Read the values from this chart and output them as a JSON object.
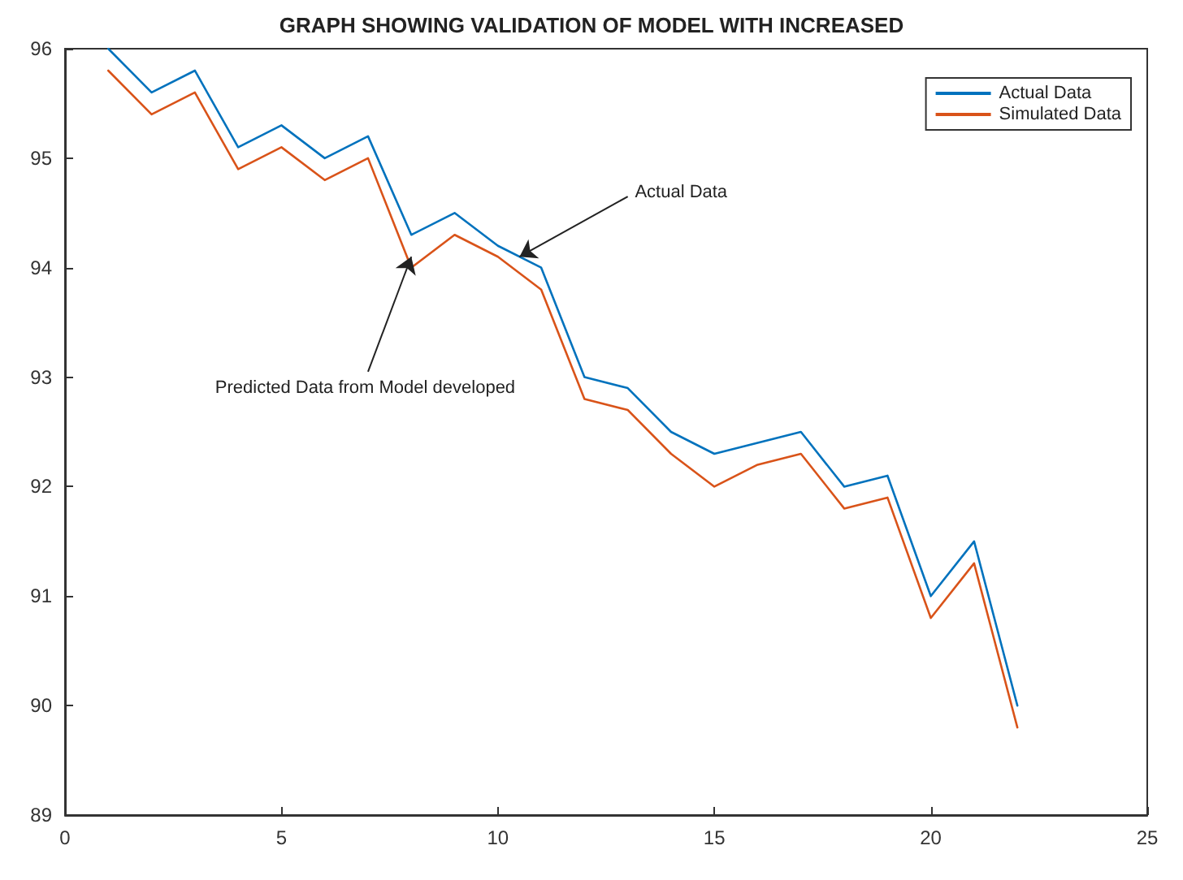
{
  "chart_data": {
    "type": "line",
    "title": "GRAPH SHOWING VALIDATION OF MODEL WITH INCREASED",
    "x": [
      1,
      2,
      3,
      4,
      5,
      6,
      7,
      8,
      9,
      10,
      11,
      12,
      13,
      14,
      15,
      16,
      17,
      18,
      19,
      20,
      21,
      22
    ],
    "series": [
      {
        "name": "Actual Data",
        "color": "#0072bd",
        "values": [
          96,
          95.6,
          95.8,
          95.1,
          95.3,
          95.0,
          95.2,
          94.3,
          94.5,
          94.2,
          94.0,
          93.0,
          92.9,
          92.5,
          92.3,
          92.4,
          92.5,
          92.0,
          92.1,
          91.0,
          91.5,
          90.0
        ]
      },
      {
        "name": "Simulated Data",
        "color": "#d95319",
        "values": [
          95.8,
          95.4,
          95.6,
          94.9,
          95.1,
          94.8,
          95.0,
          94.0,
          94.3,
          94.1,
          93.8,
          92.8,
          92.7,
          92.3,
          92.0,
          92.2,
          92.3,
          91.8,
          91.9,
          90.8,
          91.3,
          89.8
        ]
      }
    ],
    "xlim": [
      0,
      25
    ],
    "xticks": [
      0,
      5,
      10,
      15,
      20,
      25
    ],
    "ylim": [
      89,
      96
    ],
    "yticks": [
      89,
      90,
      91,
      92,
      93,
      94,
      95,
      96
    ],
    "annotations": [
      {
        "text": "Actual Data",
        "x": 10.5,
        "y": 94.1
      },
      {
        "text": "Predicted Data from Model developed",
        "x": 8,
        "y": 94.1
      }
    ],
    "grid": false,
    "legend": "top right",
    "marker": "none",
    "line_style": "solid"
  }
}
